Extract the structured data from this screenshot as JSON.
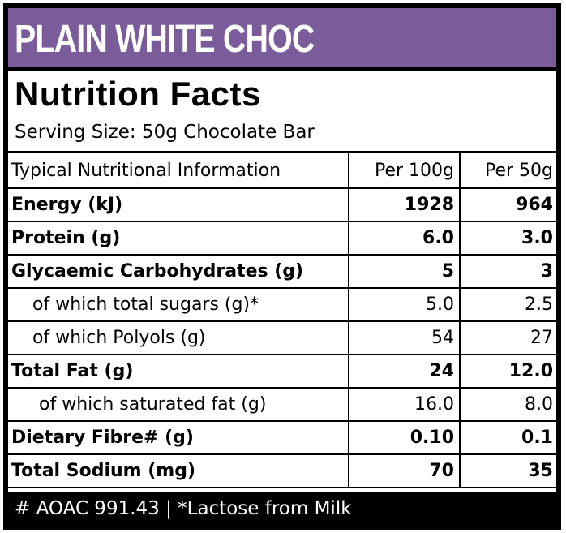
{
  "banner": "PLAIN WHITE CHOC",
  "title": "Nutrition Facts",
  "serving_size": "Serving Size: 50g Chocolate Bar",
  "table": {
    "headers": [
      "Typical Nutritional Information",
      "Per 100g",
      "Per 50g"
    ],
    "rows": [
      {
        "label": "Energy (kJ)",
        "per100": "1928",
        "per50": "964",
        "style": "bold"
      },
      {
        "label": "Protein (g)",
        "per100": "6.0",
        "per50": "3.0",
        "style": "bold"
      },
      {
        "label": "Glycaemic Carbohydrates (g)",
        "per100": "5",
        "per50": "3",
        "style": "bold"
      },
      {
        "label": "of which total sugars (g)*",
        "per100": "5.0",
        "per50": "2.5",
        "style": "sub"
      },
      {
        "label": "of which Polyols (g)",
        "per100": "54",
        "per50": "27",
        "style": "sub"
      },
      {
        "label": "Total Fat (g)",
        "per100": "24",
        "per50": "12.0",
        "style": "bold"
      },
      {
        "label": "of which saturated fat (g)",
        "per100": "16.0",
        "per50": "8.0",
        "style": "sub2"
      },
      {
        "label": "Dietary Fibre# (g)",
        "per100": "0.10",
        "per50": "0.1",
        "style": "bold"
      },
      {
        "label": "Total Sodium (mg)",
        "per100": "70",
        "per50": "35",
        "style": "bold"
      }
    ]
  },
  "footer": "# AOAC 991.43  |  *Lactose from Milk",
  "colors": {
    "banner": "#7b5c9b",
    "footer": "#000000"
  }
}
